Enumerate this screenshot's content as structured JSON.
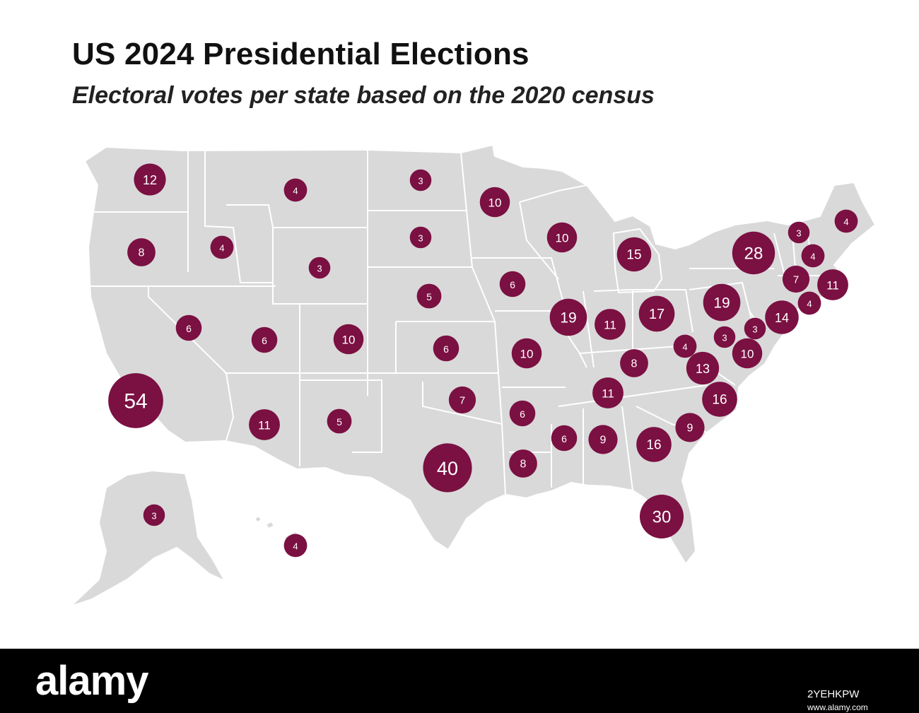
{
  "title": "US 2024 Presidential Elections",
  "subtitle": "Electoral votes per state based on the 2020 census",
  "colors": {
    "bubble": "#7b1042",
    "land": "#d9d9d9",
    "borders": "#ffffff",
    "footer": "#000000"
  },
  "states": [
    {
      "state": "California",
      "votes": 54
    },
    {
      "state": "Texas",
      "votes": 40
    },
    {
      "state": "Florida",
      "votes": 30
    },
    {
      "state": "New York",
      "votes": 28
    },
    {
      "state": "Illinois",
      "votes": 19
    },
    {
      "state": "Pennsylvania",
      "votes": 19
    },
    {
      "state": "Ohio",
      "votes": 17
    },
    {
      "state": "Georgia",
      "votes": 16
    },
    {
      "state": "North Carolina",
      "votes": 16
    },
    {
      "state": "Michigan",
      "votes": 15
    },
    {
      "state": "New Jersey",
      "votes": 14
    },
    {
      "state": "Virginia",
      "votes": 13
    },
    {
      "state": "Washington",
      "votes": 12
    },
    {
      "state": "Arizona",
      "votes": 11
    },
    {
      "state": "Indiana",
      "votes": 11
    },
    {
      "state": "Tennessee",
      "votes": 11
    },
    {
      "state": "Massachusetts",
      "votes": 11
    },
    {
      "state": "Colorado",
      "votes": 10
    },
    {
      "state": "Minnesota",
      "votes": 10
    },
    {
      "state": "Wisconsin",
      "votes": 10
    },
    {
      "state": "Missouri",
      "votes": 10
    },
    {
      "state": "Maryland",
      "votes": 10
    },
    {
      "state": "Alabama",
      "votes": 9
    },
    {
      "state": "South Carolina",
      "votes": 9
    },
    {
      "state": "Oregon",
      "votes": 8
    },
    {
      "state": "Kentucky",
      "votes": 8
    },
    {
      "state": "Louisiana",
      "votes": 8
    },
    {
      "state": "Oklahoma",
      "votes": 7
    },
    {
      "state": "Connecticut",
      "votes": 7
    },
    {
      "state": "Nevada",
      "votes": 6
    },
    {
      "state": "Utah",
      "votes": 6
    },
    {
      "state": "Kansas",
      "votes": 6
    },
    {
      "state": "Iowa",
      "votes": 6
    },
    {
      "state": "Arkansas",
      "votes": 6
    },
    {
      "state": "Mississippi",
      "votes": 6
    },
    {
      "state": "Nebraska",
      "votes": 5
    },
    {
      "state": "New Mexico",
      "votes": 5
    },
    {
      "state": "Idaho",
      "votes": 4
    },
    {
      "state": "Montana",
      "votes": 4
    },
    {
      "state": "Maine",
      "votes": 4
    },
    {
      "state": "New Hampshire",
      "votes": 4
    },
    {
      "state": "Rhode Island",
      "votes": 4
    },
    {
      "state": "West Virginia",
      "votes": 4
    },
    {
      "state": "Hawaii",
      "votes": 4
    },
    {
      "state": "Wyoming",
      "votes": 3
    },
    {
      "state": "North Dakota",
      "votes": 3
    },
    {
      "state": "South Dakota",
      "votes": 3
    },
    {
      "state": "Vermont",
      "votes": 3
    },
    {
      "state": "Delaware",
      "votes": 3
    },
    {
      "state": "District of Columbia",
      "votes": 3
    },
    {
      "state": "Alaska",
      "votes": 3
    }
  ],
  "footer": {
    "logo": "alamy",
    "image_id": "2YEHKPW",
    "url": "www.alamy.com"
  }
}
